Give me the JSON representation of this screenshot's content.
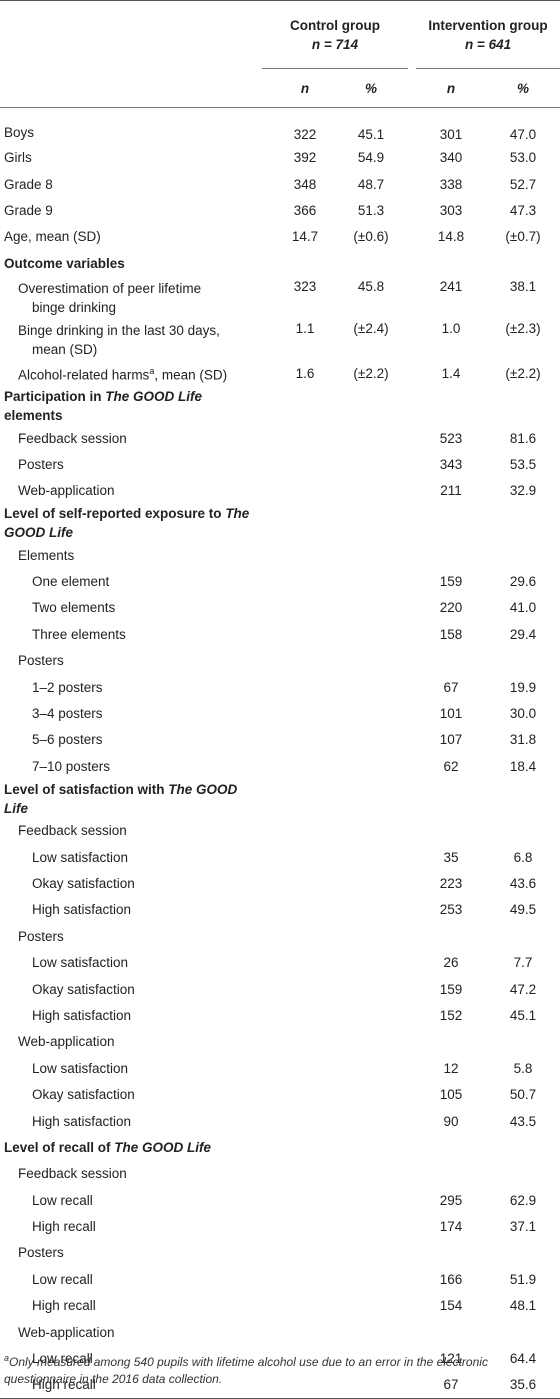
{
  "header": {
    "control_title": "Control group",
    "control_n": "n = 714",
    "intervention_title": "Intervention group",
    "intervention_n": "n = 641",
    "col_n": "n",
    "col_pct": "%"
  },
  "rows": [
    {
      "label": "Boys",
      "cn": "322",
      "cp": "45.1",
      "in": "301",
      "ip": "47.0"
    },
    {
      "label": "Girls",
      "cn": "392",
      "cp": "54.9",
      "in": "340",
      "ip": "53.0"
    },
    {
      "label": "Grade 8",
      "cn": "348",
      "cp": "48.7",
      "in": "338",
      "ip": "52.7"
    },
    {
      "label": "Grade 9",
      "cn": "366",
      "cp": "51.3",
      "in": "303",
      "ip": "47.3"
    },
    {
      "label": "Age, mean (SD)",
      "cn": "14.7",
      "cp": "(±0.6)",
      "in": "14.8",
      "ip": "(±0.7)"
    },
    {
      "label": "Outcome variables"
    },
    {
      "label_line1": "Overestimation of peer lifetime",
      "label_line2": "binge drinking",
      "cn": "323",
      "cp": "45.8",
      "in": "241",
      "ip": "38.1"
    },
    {
      "label_line1": "Binge drinking in the last 30 days,",
      "label_line2": "mean (SD)",
      "cn": "1.1",
      "cp": "(±2.4)",
      "in": "1.0",
      "ip": "(±2.3)"
    },
    {
      "label_pre": "Alcohol-related harms",
      "label_sup": "a",
      "label_post": ", mean (SD)",
      "cn": "1.6",
      "cp": "(±2.2)",
      "in": "1.4",
      "ip": "(±2.2)"
    },
    {
      "label_pre": "Participation in ",
      "label_em": "The GOOD Life",
      "label_post": " elements"
    },
    {
      "label": "Feedback session",
      "in": "523",
      "ip": "81.6"
    },
    {
      "label": "Posters",
      "in": "343",
      "ip": "53.5"
    },
    {
      "label": "Web-application",
      "in": "211",
      "ip": "32.9"
    },
    {
      "label_pre": "Level of self-reported exposure to ",
      "label_em": "The GOOD Life"
    },
    {
      "label": "Elements"
    },
    {
      "label": "One element",
      "in": "159",
      "ip": "29.6"
    },
    {
      "label": "Two elements",
      "in": "220",
      "ip": "41.0"
    },
    {
      "label": "Three elements",
      "in": "158",
      "ip": "29.4"
    },
    {
      "label": "Posters"
    },
    {
      "label": "1–2 posters",
      "in": "67",
      "ip": "19.9"
    },
    {
      "label": "3–4 posters",
      "in": "101",
      "ip": "30.0"
    },
    {
      "label": "5–6 posters",
      "in": "107",
      "ip": "31.8"
    },
    {
      "label": "7–10 posters",
      "in": "62",
      "ip": "18.4"
    },
    {
      "label_pre": "Level of satisfaction with ",
      "label_em": "The GOOD Life"
    },
    {
      "label": "Feedback session"
    },
    {
      "label": "Low satisfaction",
      "in": "35",
      "ip": "6.8"
    },
    {
      "label": "Okay satisfaction",
      "in": "223",
      "ip": "43.6"
    },
    {
      "label": "High satisfaction",
      "in": "253",
      "ip": "49.5"
    },
    {
      "label": "Posters"
    },
    {
      "label": "Low satisfaction",
      "in": "26",
      "ip": "7.7"
    },
    {
      "label": "Okay satisfaction",
      "in": "159",
      "ip": "47.2"
    },
    {
      "label": "High satisfaction",
      "in": "152",
      "ip": "45.1"
    },
    {
      "label": "Web-application"
    },
    {
      "label": "Low satisfaction",
      "in": "12",
      "ip": "5.8"
    },
    {
      "label": "Okay satisfaction",
      "in": "105",
      "ip": "50.7"
    },
    {
      "label": "High satisfaction",
      "in": "90",
      "ip": "43.5"
    },
    {
      "label_pre": "Level of recall of ",
      "label_em": "The GOOD Life"
    },
    {
      "label": "Feedback session"
    },
    {
      "label": "Low recall",
      "in": "295",
      "ip": "62.9"
    },
    {
      "label": "High recall",
      "in": "174",
      "ip": "37.1"
    },
    {
      "label": "Posters"
    },
    {
      "label": "Low recall",
      "in": "166",
      "ip": "51.9"
    },
    {
      "label": "High recall",
      "in": "154",
      "ip": "48.1"
    },
    {
      "label": "Web-application"
    },
    {
      "label": "Low recall",
      "in": "121",
      "ip": "64.4"
    },
    {
      "label": "High recall",
      "in": "67",
      "ip": "35.6"
    }
  ],
  "footnote": {
    "mark": "a",
    "text": "Only measured among 540 pupils with lifetime alcohol use due to an error in the electronic questionnaire in the 2016 data collection."
  }
}
